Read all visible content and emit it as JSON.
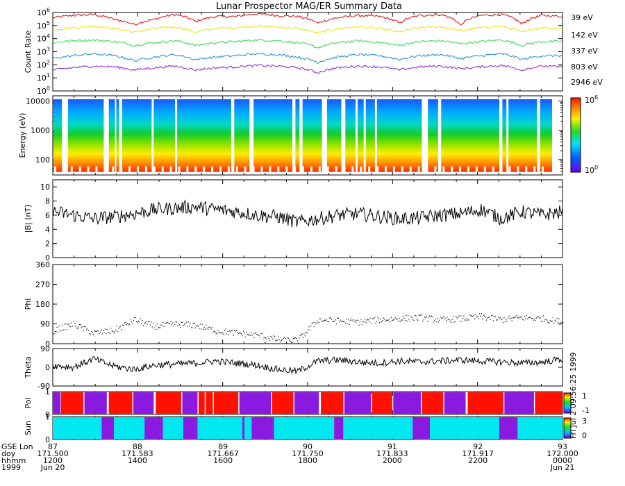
{
  "chart_data": {
    "type": "line",
    "title": "Lunar Prospector MAG/ER Summary Data",
    "x_start": 171.5,
    "x_end": 172.0,
    "x_ticks": [
      171.5,
      171.583,
      171.667,
      171.75,
      171.833,
      171.917,
      172.0
    ],
    "x_rows": [
      {
        "label": "GSE Lon",
        "values": [
          "87",
          "88",
          "89",
          "90",
          "91",
          "92",
          "93"
        ]
      },
      {
        "label": "doy",
        "values": [
          "171.500",
          "171.583",
          "171.667",
          "171.750",
          "171.833",
          "171.917",
          "172.000"
        ]
      },
      {
        "label": "hhmm",
        "values": [
          "1200",
          "1400",
          "1600",
          "1800",
          "2000",
          "2200",
          "0000"
        ]
      },
      {
        "label": "1999",
        "values": [
          "Jun 20",
          "",
          "",
          "",
          "",
          "",
          "Jun 21"
        ]
      }
    ],
    "panels": [
      {
        "name": "count-rate",
        "type": "line",
        "ylabel": "Count Rate",
        "yscale": "log",
        "ylim": [
          1,
          1000000
        ],
        "tick_labels": [
          "10",
          "10",
          "10",
          "10",
          "10",
          "10",
          "10"
        ],
        "tick_exponents": [
          "0",
          "1",
          "2",
          "3",
          "4",
          "5",
          "6"
        ],
        "series": [
          {
            "name": "39 eV",
            "label": "39 eV",
            "color": "#e00000",
            "x": [
              171.5,
              171.52,
              171.54,
              171.56,
              171.58,
              171.6,
              171.62,
              171.64,
              171.66,
              171.68,
              171.7,
              171.72,
              171.74,
              171.76,
              171.78,
              171.8,
              171.82,
              171.84,
              171.86,
              171.88,
              171.9,
              171.92,
              171.94,
              171.96,
              171.98,
              172.0
            ],
            "y": [
              400000,
              600000,
              700000,
              300000,
              120000,
              300000,
              700000,
              200000,
              500000,
              500000,
              800000,
              600000,
              500000,
              150000,
              400000,
              600000,
              500000,
              150000,
              600000,
              700000,
              100000,
              600000,
              700000,
              120000,
              600000,
              500000
            ]
          },
          {
            "name": "142 eV",
            "label": "142 eV",
            "color": "#e6e600",
            "x": [
              171.5,
              171.52,
              171.54,
              171.56,
              171.58,
              171.6,
              171.62,
              171.64,
              171.66,
              171.68,
              171.7,
              171.72,
              171.74,
              171.76,
              171.78,
              171.8,
              171.82,
              171.84,
              171.86,
              171.88,
              171.9,
              171.92,
              171.94,
              171.96,
              171.98,
              172.0
            ],
            "y": [
              50000,
              70000,
              90000,
              60000,
              30000,
              60000,
              80000,
              30000,
              60000,
              70000,
              90000,
              80000,
              60000,
              25000,
              60000,
              80000,
              60000,
              30000,
              70000,
              80000,
              40000,
              70000,
              90000,
              30000,
              70000,
              60000
            ]
          },
          {
            "name": "337 eV",
            "label": "337 eV",
            "color": "#22dd44",
            "x": [
              171.5,
              171.52,
              171.54,
              171.56,
              171.58,
              171.6,
              171.62,
              171.64,
              171.66,
              171.68,
              171.7,
              171.72,
              171.74,
              171.76,
              171.78,
              171.8,
              171.82,
              171.84,
              171.86,
              171.88,
              171.9,
              171.92,
              171.94,
              171.96,
              171.98,
              172.0
            ],
            "y": [
              5000,
              7000,
              8000,
              6000,
              3000,
              5000,
              7000,
              3000,
              5000,
              6000,
              8000,
              7000,
              5000,
              2000,
              5000,
              7000,
              5000,
              3000,
              6000,
              7000,
              4000,
              6000,
              8000,
              3000,
              6000,
              6000
            ]
          },
          {
            "name": "803 eV",
            "label": "803 eV",
            "color": "#1a8cd8",
            "x": [
              171.5,
              171.52,
              171.54,
              171.56,
              171.58,
              171.6,
              171.62,
              171.64,
              171.66,
              171.68,
              171.7,
              171.72,
              171.74,
              171.76,
              171.78,
              171.8,
              171.82,
              171.84,
              171.86,
              171.88,
              171.9,
              171.92,
              171.94,
              171.96,
              171.98,
              172.0
            ],
            "y": [
              300,
              500,
              700,
              500,
              200,
              400,
              600,
              250,
              400,
              500,
              700,
              600,
              400,
              150,
              400,
              600,
              500,
              250,
              500,
              600,
              300,
              500,
              700,
              250,
              500,
              500
            ]
          },
          {
            "name": "2946 eV",
            "label": "2946 eV",
            "color": "#8a1ad8",
            "x": [
              171.5,
              171.52,
              171.54,
              171.56,
              171.58,
              171.6,
              171.62,
              171.64,
              171.66,
              171.68,
              171.7,
              171.72,
              171.74,
              171.76,
              171.78,
              171.8,
              171.82,
              171.84,
              171.86,
              171.88,
              171.9,
              171.92,
              171.94,
              171.96,
              171.98,
              172.0
            ],
            "y": [
              40,
              60,
              80,
              70,
              40,
              60,
              80,
              40,
              60,
              70,
              90,
              80,
              60,
              25,
              60,
              80,
              70,
              40,
              70,
              80,
              50,
              70,
              90,
              40,
              80,
              70
            ]
          }
        ]
      },
      {
        "name": "energy-spectrogram",
        "type": "heatmap",
        "ylabel": "Energy (eV)",
        "yscale": "log",
        "ylim": [
          30,
          15000
        ],
        "tick_labels": [
          "10000",
          "1000",
          "100"
        ],
        "colorbar": {
          "min_label": "10",
          "min_exp": "0",
          "max_label": "10",
          "max_exp": "6"
        },
        "data_gaps": [
          [
            171.509,
            171.515
          ],
          [
            171.55,
            171.555
          ],
          [
            171.561,
            171.56
          ],
          [
            171.565,
            171.568
          ],
          [
            171.597,
            171.599
          ],
          [
            171.62,
            171.622
          ],
          [
            171.675,
            171.678
          ],
          [
            171.693,
            171.697
          ],
          [
            171.735,
            171.738
          ],
          [
            171.742,
            171.745
          ],
          [
            171.764,
            171.769
          ],
          [
            171.783,
            171.787
          ],
          [
            171.797,
            171.799
          ],
          [
            171.805,
            171.807
          ],
          [
            171.816,
            171.818
          ],
          [
            171.862,
            171.868
          ],
          [
            171.878,
            171.881
          ],
          [
            171.938,
            171.941
          ],
          [
            171.945,
            171.947
          ],
          [
            171.975,
            171.978
          ]
        ]
      },
      {
        "name": "b-magnitude",
        "type": "line",
        "ylabel": "|B| (nT)",
        "ylim": [
          0,
          11
        ],
        "tick_labels": [
          "0",
          "2",
          "4",
          "6",
          "8",
          "10"
        ],
        "series": [
          {
            "name": "|B|",
            "color": "#000000",
            "x": [
              171.5,
              171.52,
              171.54,
              171.56,
              171.58,
              171.6,
              171.62,
              171.64,
              171.66,
              171.68,
              171.7,
              171.72,
              171.74,
              171.76,
              171.78,
              171.8,
              171.82,
              171.84,
              171.86,
              171.88,
              171.9,
              171.92,
              171.94,
              171.96,
              171.98,
              172.0
            ],
            "y": [
              6.5,
              6.0,
              5.5,
              5.8,
              6.2,
              6.8,
              7.0,
              7.2,
              6.8,
              6.5,
              6.0,
              5.8,
              5.0,
              5.5,
              6.0,
              6.2,
              5.8,
              5.5,
              5.6,
              6.0,
              6.2,
              6.8,
              5.5,
              6.5,
              6.0,
              6.5
            ]
          }
        ]
      },
      {
        "name": "phi",
        "type": "scatter",
        "ylabel": "Phi",
        "ylim": [
          0,
          360
        ],
        "tick_labels": [
          "0",
          "90",
          "180",
          "270",
          "360"
        ],
        "series": [
          {
            "name": "Phi",
            "color": "#000000",
            "x": [
              171.5,
              171.52,
              171.54,
              171.56,
              171.58,
              171.6,
              171.62,
              171.64,
              171.66,
              171.68,
              171.7,
              171.72,
              171.74,
              171.76,
              171.78,
              171.8,
              171.82,
              171.84,
              171.86,
              171.88,
              171.9,
              171.92,
              171.94,
              171.96,
              171.98,
              172.0
            ],
            "y": [
              60,
              90,
              50,
              60,
              110,
              80,
              90,
              85,
              60,
              50,
              40,
              20,
              15,
              110,
              105,
              100,
              110,
              115,
              120,
              110,
              115,
              125,
              110,
              120,
              115,
              100
            ]
          }
        ]
      },
      {
        "name": "theta",
        "type": "line",
        "ylabel": "Theta",
        "ylim": [
          -90,
          90
        ],
        "tick_labels": [
          "-90",
          "0",
          "90"
        ],
        "series": [
          {
            "name": "Theta",
            "color": "#000000",
            "x": [
              171.5,
              171.52,
              171.54,
              171.56,
              171.58,
              171.6,
              171.62,
              171.64,
              171.66,
              171.68,
              171.7,
              171.72,
              171.74,
              171.76,
              171.78,
              171.8,
              171.82,
              171.84,
              171.86,
              171.88,
              171.9,
              171.92,
              171.94,
              171.96,
              171.98,
              172.0
            ],
            "y": [
              10,
              0,
              40,
              5,
              -10,
              10,
              15,
              20,
              30,
              20,
              10,
              -10,
              -20,
              30,
              35,
              25,
              20,
              30,
              25,
              30,
              35,
              30,
              25,
              20,
              25,
              40
            ]
          }
        ]
      },
      {
        "name": "polarity",
        "type": "heatmap",
        "ylabel": "Pol",
        "ylim": [
          0,
          1
        ],
        "tick_labels": [
          "0",
          "1"
        ],
        "colorbar": {
          "max_label": "1",
          "min_label": "-1",
          "side_text": "Fri Jul 2 09:56:25 1999"
        },
        "segments": [
          {
            "x0": 171.5,
            "x1": 171.5075,
            "value": -1
          },
          {
            "x0": 171.508,
            "x1": 171.53,
            "value": 1
          },
          {
            "x0": 171.531,
            "x1": 171.553,
            "value": -1
          },
          {
            "x0": 171.555,
            "x1": 171.578,
            "value": 1
          },
          {
            "x0": 171.579,
            "x1": 171.599,
            "value": -1
          },
          {
            "x0": 171.601,
            "x1": 171.626,
            "value": 1
          },
          {
            "x0": 171.627,
            "x1": 171.642,
            "value": -1
          },
          {
            "x0": 171.643,
            "x1": 171.649,
            "value": 1
          },
          {
            "x0": 171.65,
            "x1": 171.657,
            "value": 1
          },
          {
            "x0": 171.658,
            "x1": 171.682,
            "value": 1
          },
          {
            "x0": 171.683,
            "x1": 171.714,
            "value": -1
          },
          {
            "x0": 171.715,
            "x1": 171.736,
            "value": 1
          },
          {
            "x0": 171.737,
            "x1": 171.761,
            "value": -1
          },
          {
            "x0": 171.763,
            "x1": 171.785,
            "value": 1
          },
          {
            "x0": 171.786,
            "x1": 171.812,
            "value": -1
          },
          {
            "x0": 171.813,
            "x1": 171.833,
            "value": 1
          },
          {
            "x0": 171.834,
            "x1": 171.861,
            "value": -1
          },
          {
            "x0": 171.862,
            "x1": 171.883,
            "value": 1
          },
          {
            "x0": 171.884,
            "x1": 171.905,
            "value": -1
          },
          {
            "x0": 171.907,
            "x1": 171.942,
            "value": 1
          },
          {
            "x0": 171.943,
            "x1": 171.972,
            "value": -1
          },
          {
            "x0": 171.973,
            "x1": 172.0,
            "value": 1
          }
        ]
      },
      {
        "name": "sun",
        "type": "heatmap",
        "ylabel": "Sun",
        "ylim": [
          0,
          1
        ],
        "tick_labels": [
          "0",
          "1"
        ],
        "colorbar": {
          "max_label": "3",
          "min_label": "0"
        },
        "segments": [
          {
            "x0": 171.5,
            "x1": 171.548,
            "value": 3
          },
          {
            "x0": 171.548,
            "x1": 171.56,
            "value": 1
          },
          {
            "x0": 171.56,
            "x1": 171.59,
            "value": 3
          },
          {
            "x0": 171.59,
            "x1": 171.608,
            "value": 1
          },
          {
            "x0": 171.608,
            "x1": 171.628,
            "value": 3
          },
          {
            "x0": 171.628,
            "x1": 171.642,
            "value": 1
          },
          {
            "x0": 171.642,
            "x1": 171.686,
            "value": 3
          },
          {
            "x0": 171.686,
            "x1": 171.688,
            "value": 1
          },
          {
            "x0": 171.688,
            "x1": 171.695,
            "value": 3
          },
          {
            "x0": 171.695,
            "x1": 171.717,
            "value": 1
          },
          {
            "x0": 171.717,
            "x1": 171.776,
            "value": 3
          },
          {
            "x0": 171.776,
            "x1": 171.785,
            "value": 1
          },
          {
            "x0": 171.785,
            "x1": 171.853,
            "value": 3
          },
          {
            "x0": 171.853,
            "x1": 171.87,
            "value": 1
          },
          {
            "x0": 171.87,
            "x1": 171.938,
            "value": 3
          },
          {
            "x0": 171.938,
            "x1": 171.956,
            "value": 1
          },
          {
            "x0": 171.956,
            "x1": 172.0,
            "value": 3
          }
        ]
      }
    ],
    "colors": {
      "pol_pos": "#ff1100",
      "pol_neg": "#8a1ae0",
      "sun_lit": "#00e8f0",
      "sun_dark": "#8a1ae0"
    }
  }
}
